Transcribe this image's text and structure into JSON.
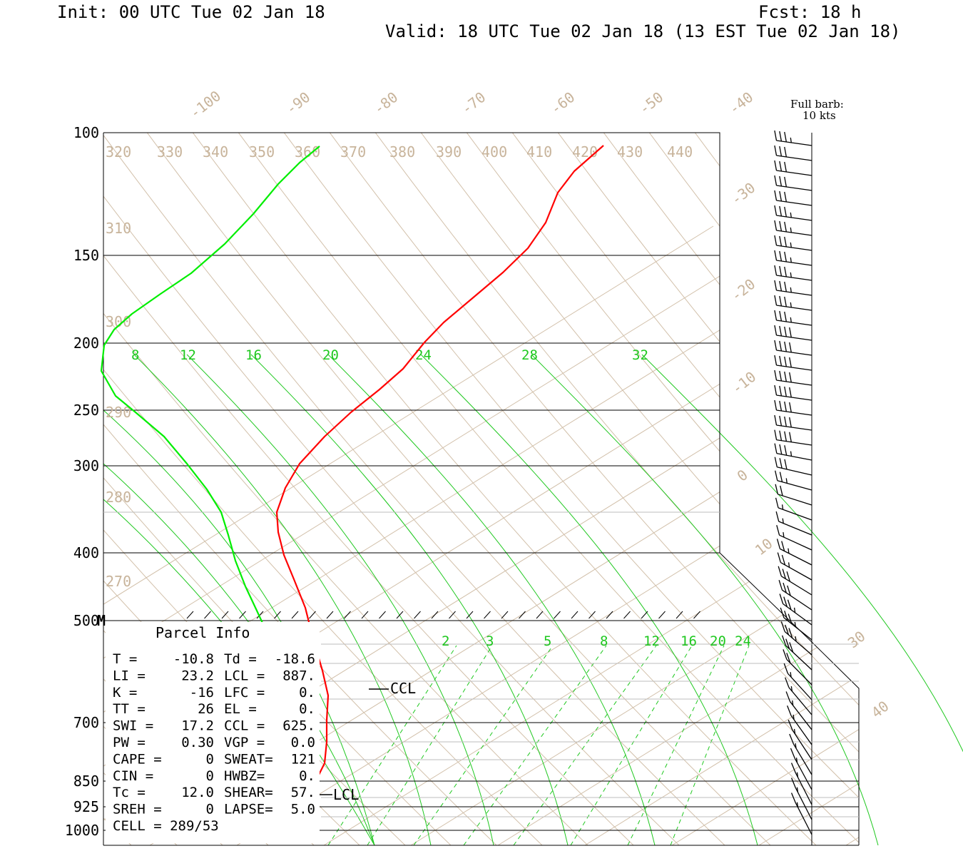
{
  "header": {
    "init": "Init: 00 UTC Tue 02 Jan 18",
    "fcst": "Fcst:   18 h",
    "valid": "Valid: 18 UTC Tue 02 Jan 18 (13 EST Tue 02 Jan 18)"
  },
  "barb_legend": {
    "line1": "Full barb:",
    "line2": "10 kts"
  },
  "chart_data": {
    "type": "line",
    "pressure_labels": [
      "100",
      "150",
      "200",
      "250",
      "300",
      "400",
      "500",
      "700",
      "850",
      "925",
      "1000"
    ],
    "pressure_levels": [
      100,
      150,
      200,
      250,
      300,
      400,
      500,
      700,
      850,
      925,
      1000
    ],
    "marker_500": "M",
    "isotherm_labels": [
      "-100",
      "-90",
      "-80",
      "-70",
      "-60",
      "-50",
      "-40",
      "-30",
      "-20",
      "-10",
      "0",
      "10",
      "30",
      "40"
    ],
    "theta_labels": [
      "320",
      "330",
      "340",
      "350",
      "360",
      "370",
      "380",
      "390",
      "400",
      "410",
      "420",
      "430",
      "440",
      "310",
      "300",
      "290",
      "280",
      "270"
    ],
    "mixing_ratio_labels_upper": [
      "8",
      "12",
      "16",
      "20",
      "24",
      "28",
      "32"
    ],
    "mixing_ratio_labels_lower": [
      "2",
      "3",
      "5",
      "8",
      "12",
      "16",
      "20",
      "24"
    ],
    "ccl_label": "CCL",
    "lcl_label": "LCL",
    "series": [
      {
        "color": "#ff0000",
        "role": "temperature",
        "points": [
          [
            846,
            204
          ],
          [
            805,
            240
          ],
          [
            782,
            270
          ],
          [
            765,
            312
          ],
          [
            740,
            348
          ],
          [
            705,
            382
          ],
          [
            660,
            420
          ],
          [
            622,
            452
          ],
          [
            595,
            480
          ],
          [
            565,
            517
          ],
          [
            532,
            546
          ],
          [
            492,
            578
          ],
          [
            455,
            612
          ],
          [
            420,
            650
          ],
          [
            400,
            684
          ],
          [
            388,
            718
          ],
          [
            390,
            746
          ],
          [
            398,
            778
          ],
          [
            412,
            812
          ],
          [
            428,
            852
          ],
          [
            440,
            900
          ],
          [
            452,
            940
          ],
          [
            460,
            975
          ],
          [
            458,
            1010
          ],
          [
            458,
            1040
          ],
          [
            455,
            1070
          ],
          [
            440,
            1100
          ],
          [
            420,
            1118
          ],
          [
            400,
            1130
          ],
          [
            398,
            1142
          ],
          [
            415,
            1155
          ],
          [
            440,
            1172
          ]
        ]
      },
      {
        "color": "#00ee00",
        "role": "dewpoint",
        "points": [
          [
            448,
            205
          ],
          [
            420,
            228
          ],
          [
            390,
            258
          ],
          [
            355,
            300
          ],
          [
            315,
            342
          ],
          [
            268,
            383
          ],
          [
            225,
            412
          ],
          [
            185,
            440
          ],
          [
            160,
            462
          ],
          [
            146,
            484
          ],
          [
            142,
            520
          ],
          [
            162,
            555
          ],
          [
            190,
            578
          ],
          [
            230,
            612
          ],
          [
            262,
            650
          ],
          [
            290,
            686
          ],
          [
            310,
            718
          ],
          [
            320,
            750
          ],
          [
            330,
            786
          ],
          [
            344,
            822
          ],
          [
            360,
            856
          ],
          [
            372,
            882
          ],
          [
            378,
            900
          ],
          [
            382,
            940
          ],
          [
            378,
            975
          ],
          [
            370,
            1010
          ],
          [
            362,
            1040
          ],
          [
            356,
            1070
          ],
          [
            350,
            1100
          ],
          [
            347,
            1130
          ],
          [
            344,
            1150
          ],
          [
            342,
            1172
          ]
        ]
      }
    ],
    "wind_speeds_kt": [
      35,
      30,
      30,
      30,
      30,
      35,
      35,
      35,
      35,
      35,
      35,
      35,
      35,
      40,
      40,
      40,
      40,
      40,
      40,
      40,
      40,
      35,
      30,
      25,
      20,
      15,
      15,
      15,
      25,
      25,
      30,
      30,
      35,
      35,
      35,
      30,
      20,
      15,
      15,
      15,
      15,
      15,
      15,
      15,
      15,
      15,
      15
    ]
  },
  "parcel_info": {
    "title": "Parcel Info",
    "rows": [
      [
        "T  =",
        "-10.8",
        "Td =",
        "-18.6"
      ],
      [
        "LI =",
        "23.2",
        "LCL =",
        "887."
      ],
      [
        "K  =",
        "-16",
        "LFC =",
        "0."
      ],
      [
        "TT =",
        "26",
        "EL  =",
        "0."
      ],
      [
        "SWI =",
        "17.2",
        "CCL =",
        "625."
      ],
      [
        "PW =",
        "0.30",
        "VGP =",
        "0.0"
      ],
      [
        "CAPE =",
        "0",
        "SWEAT=",
        "121"
      ],
      [
        "CIN =",
        "0",
        "HWBZ=",
        "0."
      ],
      [
        "Tc =",
        "12.0",
        "SHEAR=",
        "57."
      ],
      [
        "SREH =",
        "0",
        "LAPSE=",
        "5.0"
      ],
      [
        "CELL = 289/53",
        "",
        "",
        ""
      ]
    ]
  }
}
